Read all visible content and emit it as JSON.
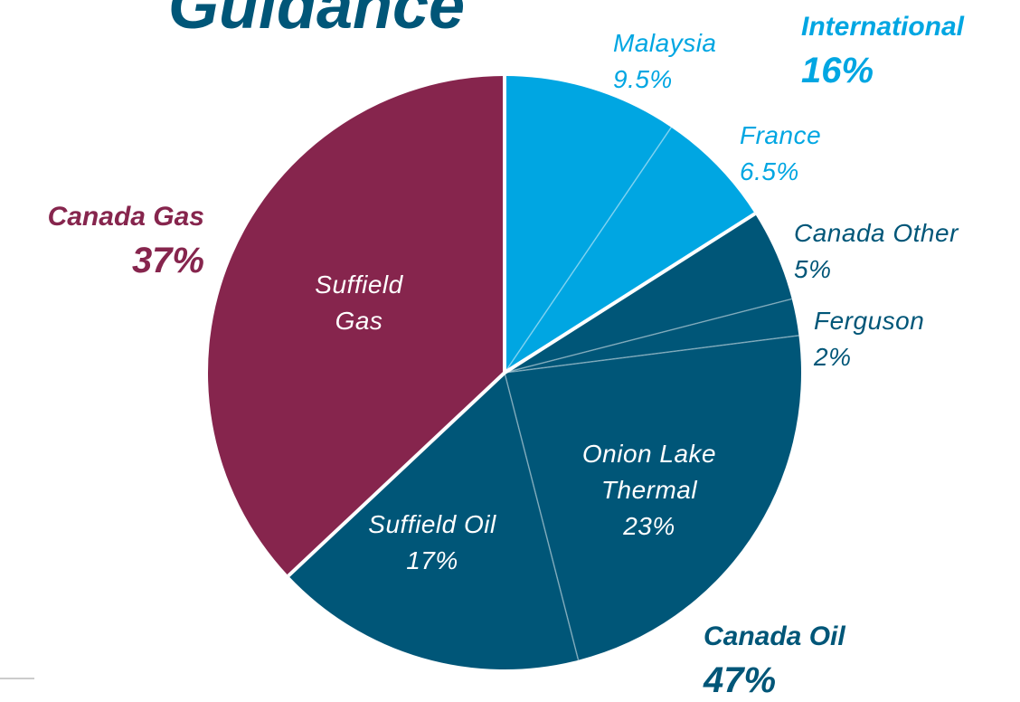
{
  "chart_data": {
    "type": "pie",
    "title": "Guidance",
    "categories": [
      "Malaysia",
      "France",
      "Canada Other",
      "Ferguson",
      "Onion Lake Thermal",
      "Suffield Oil",
      "Suffield Gas"
    ],
    "values": [
      9.5,
      6.5,
      5,
      2,
      23,
      17,
      37
    ],
    "value_labels": [
      "9.5%",
      "6.5%",
      "5%",
      "2%",
      "23%",
      "17%",
      null
    ],
    "colors": [
      "#00a6e2",
      "#00a6e2",
      "#005678",
      "#005678",
      "#005678",
      "#005678",
      "#86254d"
    ],
    "groups": [
      {
        "name": "International",
        "value": 16,
        "value_label": "16%",
        "color": "#00a6e2"
      },
      {
        "name": "Canada Oil",
        "value": 47,
        "value_label": "47%",
        "color": "#005678"
      },
      {
        "name": "Canada Gas",
        "value": 37,
        "value_label": "37%",
        "color": "#86254d"
      }
    ]
  }
}
